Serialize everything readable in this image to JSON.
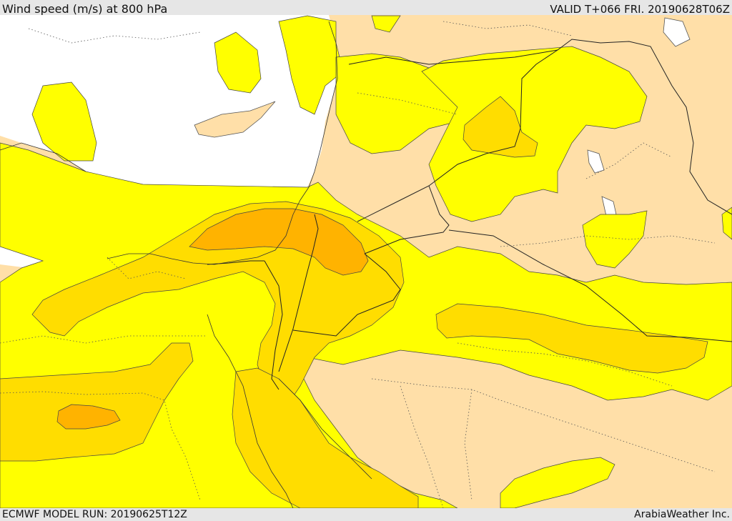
{
  "header": {
    "title": "Wind speed (m/s) at 800 hPa",
    "valid": "VALID T+066 FRI. 20190628T06Z"
  },
  "footer": {
    "model_run": "ECMWF MODEL RUN: 20190625T12Z",
    "credit": "ArabiaWeather Inc."
  },
  "colors": {
    "sea": "#ffffff",
    "calm": "#ffdfa8",
    "band_1": "#ffff00",
    "band_2": "#ffdd00",
    "band_3": "#ffb300",
    "frame": "#e6e6e6"
  }
}
